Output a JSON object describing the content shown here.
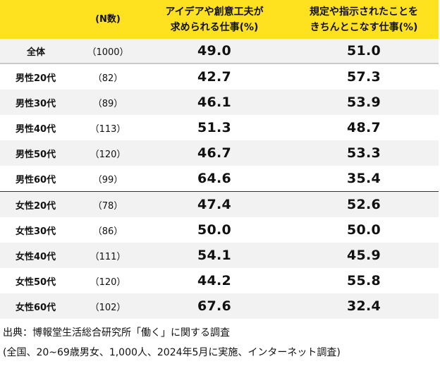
{
  "header": {
    "col_n": "(N数)",
    "col_idea_line1": "アイデアや創意工夫が",
    "col_idea_line2": "求められる仕事(%)",
    "col_rule_line1": "規定や指示されたことを",
    "col_rule_line2": "きちんとこなす仕事(%)"
  },
  "rows": [
    {
      "label": "全体",
      "n": "（1000）",
      "idea": "49.0",
      "rule": "51.0"
    },
    {
      "label": "男性20代",
      "n": "（82）",
      "idea": "42.7",
      "rule": "57.3"
    },
    {
      "label": "男性30代",
      "n": "（89）",
      "idea": "46.1",
      "rule": "53.9"
    },
    {
      "label": "男性40代",
      "n": "（113）",
      "idea": "51.3",
      "rule": "48.7"
    },
    {
      "label": "男性50代",
      "n": "（120）",
      "idea": "46.7",
      "rule": "53.3"
    },
    {
      "label": "男性60代",
      "n": "（99）",
      "idea": "64.6",
      "rule": "35.4"
    },
    {
      "label": "女性20代",
      "n": "（78）",
      "idea": "47.4",
      "rule": "52.6"
    },
    {
      "label": "女性30代",
      "n": "（86）",
      "idea": "50.0",
      "rule": "50.0"
    },
    {
      "label": "女性40代",
      "n": "（111）",
      "idea": "54.1",
      "rule": "45.9"
    },
    {
      "label": "女性50代",
      "n": "（120）",
      "idea": "44.2",
      "rule": "55.8"
    },
    {
      "label": "女性60代",
      "n": "（102）",
      "idea": "67.6",
      "rule": "32.4"
    }
  ],
  "source": {
    "line1": "出典：博報堂生活総合研究所「働く」に関する調査",
    "line2": "(全国、20~69歳男女、1,000人、2024年5月に実施、インターネット調査)"
  },
  "colors": {
    "header_bg": "#ffe21f",
    "row_alt_bg": "#f2f2f2"
  }
}
